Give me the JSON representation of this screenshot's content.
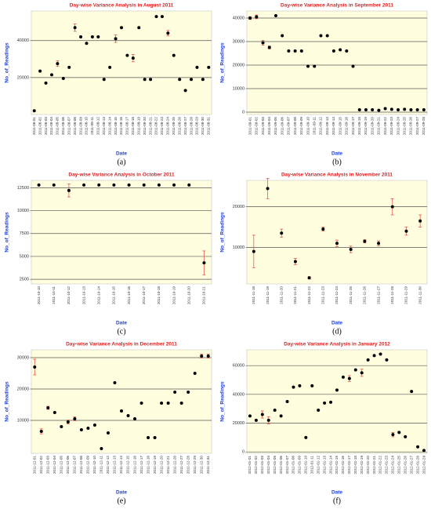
{
  "chart_data": [
    {
      "type": "point",
      "title": "Day-wise Variance Analysis in August 2011",
      "x_label": "Date",
      "y_label": "No_of_Readings",
      "caption": "(a)",
      "categories": [
        "2011-08-01",
        "2011-08-02",
        "2011-08-03",
        "2011-08-04",
        "2011-08-05",
        "2011-08-06",
        "2011-08-07",
        "2011-08-08",
        "2011-08-09",
        "2011-08-10",
        "2011-08-11",
        "2011-08-12",
        "2011-08-13",
        "2011-08-14",
        "2011-08-15",
        "2011-08-16",
        "2011-08-17",
        "2011-08-18",
        "2011-08-19",
        "2011-08-20",
        "2011-08-21",
        "2011-08-22",
        "2011-08-23",
        "2011-08-24",
        "2011-08-25",
        "2011-08-26",
        "2011-08-27",
        "2011-08-28",
        "2011-08-29",
        "2011-08-30",
        "2011-08-31"
      ],
      "values": [
        2000,
        23500,
        17000,
        21500,
        27500,
        19500,
        25500,
        47000,
        42000,
        38500,
        42000,
        42000,
        19000,
        25500,
        41000,
        47000,
        32000,
        30500,
        47000,
        19000,
        19000,
        53000,
        53000,
        44000,
        32000,
        19000,
        13000,
        19000,
        25500,
        19000,
        25500
      ],
      "errors": [
        null,
        null,
        null,
        null,
        1500,
        null,
        null,
        2000,
        null,
        null,
        null,
        null,
        null,
        null,
        2000,
        null,
        null,
        2000,
        null,
        null,
        null,
        null,
        null,
        1500,
        null,
        null,
        null,
        null,
        null,
        null,
        null
      ],
      "color": "#000000",
      "error_color": "#e0443c",
      "ylim": [
        0,
        56000
      ],
      "yticks": [
        20000,
        40000
      ],
      "grid": true
    },
    {
      "type": "point",
      "title": "Day-wise Variance Analysis in September 2011",
      "x_label": "Date",
      "y_label": "No_of_Readings",
      "caption": "(b)",
      "categories": [
        "2011-09-01",
        "2011-09-02",
        "2011-09-03",
        "2011-09-04",
        "2011-09-05",
        "2011-09-06",
        "2011-09-07",
        "2011-09-08",
        "2011-09-09",
        "2011-09-10",
        "2011-09-11",
        "2011-09-12",
        "2011-09-13",
        "2011-09-14",
        "2011-09-15",
        "2011-09-16",
        "2011-09-17",
        "2011-09-18",
        "2011-09-19",
        "2011-09-20",
        "2011-09-21",
        "2011-09-22",
        "2011-09-23",
        "2011-09-24",
        "2011-09-25",
        "2011-09-26",
        "2011-09-27",
        "2011-09-28"
      ],
      "values": [
        40000,
        40500,
        29500,
        27500,
        41000,
        32500,
        26000,
        26000,
        26000,
        19500,
        19500,
        32500,
        32500,
        26000,
        26500,
        26000,
        19500,
        1000,
        1000,
        1000,
        800,
        1500,
        1200,
        1000,
        1200,
        1000,
        1000,
        1000
      ],
      "errors": [
        600,
        800,
        1000,
        600,
        null,
        null,
        null,
        null,
        null,
        null,
        null,
        null,
        null,
        null,
        null,
        null,
        null,
        null,
        null,
        null,
        null,
        null,
        null,
        null,
        null,
        null,
        null,
        null
      ],
      "color": "#000000",
      "error_color": "#e0443c",
      "ylim": [
        -1000,
        43000
      ],
      "yticks": [
        0,
        10000,
        20000,
        30000,
        40000
      ],
      "grid": true
    },
    {
      "type": "point",
      "title": "Day-wise Variance Analysis in October 2011",
      "x_label": "Date",
      "y_label": "No_of_Readings",
      "caption": "(c)",
      "categories": [
        "2011-10-10",
        "2011-10-11",
        "2011-10-12",
        "2011-10-13",
        "2011-10-14",
        "2011-10-15",
        "2011-10-16",
        "2011-10-17",
        "2011-10-18",
        "2011-10-19",
        "2011-10-20",
        "2011-10-21"
      ],
      "values": [
        12800,
        12800,
        12200,
        12800,
        12800,
        12800,
        12800,
        12800,
        12800,
        12800,
        12800,
        4300
      ],
      "errors": [
        null,
        null,
        700,
        null,
        null,
        null,
        null,
        null,
        null,
        null,
        null,
        1300
      ],
      "color": "#000000",
      "error_color": "#e0443c",
      "ylim": [
        2000,
        13300
      ],
      "yticks": [
        2500,
        5000,
        7500,
        10000,
        12500
      ],
      "grid": true
    },
    {
      "type": "point",
      "title": "Day-wise Variance Analysis in November 2011",
      "x_label": "Date",
      "y_label": "No_of_Readings",
      "caption": "(d)",
      "categories": [
        "2011-11-18",
        "2011-11-19",
        "2011-11-20",
        "2011-11-21",
        "2011-11-22",
        "2011-11-23",
        "2011-11-24",
        "2011-11-25",
        "2011-11-26",
        "2011-11-27",
        "2011-11-28",
        "2011-11-29",
        "2011-11-30"
      ],
      "values": [
        9000,
        24500,
        13500,
        6500,
        2500,
        14500,
        11000,
        9500,
        11500,
        11000,
        20000,
        14000,
        16500
      ],
      "errors": [
        4000,
        2500,
        1000,
        800,
        300,
        500,
        800,
        800,
        400,
        600,
        2000,
        1000,
        1500
      ],
      "color": "#000000",
      "error_color": "#e0443c",
      "ylim": [
        1000,
        26500
      ],
      "yticks": [
        10000,
        20000
      ],
      "grid": true
    },
    {
      "type": "point",
      "title": "Day-wise Variance Analysis in December 2011",
      "x_label": "Date",
      "y_label": "No_of_Readings",
      "caption": "(e)",
      "categories": [
        "2011-12-01",
        "2011-12-02",
        "2011-12-03",
        "2011-12-04",
        "2011-12-05",
        "2011-12-06",
        "2011-12-07",
        "2011-12-08",
        "2011-12-09",
        "2011-12-10",
        "2011-12-11",
        "2011-12-12",
        "2011-12-13",
        "2011-12-14",
        "2011-12-15",
        "2011-12-16",
        "2011-12-17",
        "2011-12-18",
        "2011-12-19",
        "2011-12-20",
        "2011-12-21",
        "2011-12-26",
        "2011-12-27",
        "2011-12-28",
        "2011-12-29",
        "2011-12-30",
        "2011-12-31"
      ],
      "values": [
        27000,
        6500,
        14000,
        12500,
        8000,
        9500,
        10500,
        7000,
        7500,
        8500,
        1000,
        6000,
        22000,
        13000,
        11500,
        10500,
        15500,
        4500,
        4500,
        15500,
        15500,
        19000,
        15500,
        19000,
        25000,
        30500,
        30500
      ],
      "errors": [
        2500,
        800,
        500,
        null,
        null,
        600,
        600,
        null,
        null,
        null,
        null,
        null,
        null,
        null,
        null,
        null,
        null,
        null,
        null,
        null,
        null,
        null,
        null,
        null,
        null,
        600,
        600
      ],
      "color": "#000000",
      "error_color": "#e0443c",
      "ylim": [
        -500,
        32500
      ],
      "yticks": [
        10000,
        20000,
        30000
      ],
      "grid": true
    },
    {
      "type": "point",
      "title": "Day-wise Variance Analysis in January 2012",
      "x_label": "Date",
      "y_label": "No_of_Readings",
      "caption": "(f)",
      "categories": [
        "2012-01-01",
        "2012-01-02",
        "2012-01-03",
        "2012-01-04",
        "2012-01-05",
        "2012-01-06",
        "2012-01-07",
        "2012-01-08",
        "2012-01-09",
        "2012-01-10",
        "2012-01-11",
        "2012-01-12",
        "2012-01-13",
        "2012-01-14",
        "2012-01-15",
        "2012-01-16",
        "2012-01-17",
        "2012-01-18",
        "2012-01-19",
        "2012-01-20",
        "2012-01-21",
        "2012-01-22",
        "2012-01-23",
        "2012-01-24",
        "2012-01-25",
        "2012-01-26",
        "2012-01-27",
        "2012-01-28",
        "2012-01-29"
      ],
      "values": [
        25000,
        22000,
        26000,
        22000,
        29000,
        25000,
        35000,
        45000,
        46000,
        10000,
        46000,
        29000,
        34000,
        34500,
        43000,
        52000,
        51000,
        57000,
        55000,
        64000,
        67000,
        68000,
        64000,
        12000,
        13500,
        10500,
        42000,
        3500,
        1000
      ],
      "errors": [
        null,
        null,
        2500,
        2500,
        null,
        null,
        null,
        null,
        null,
        null,
        null,
        null,
        null,
        null,
        null,
        null,
        2000,
        null,
        2500,
        null,
        null,
        null,
        null,
        1500,
        null,
        null,
        null,
        null,
        null
      ],
      "color": "#000000",
      "error_color": "#e0443c",
      "ylim": [
        -1000,
        71000
      ],
      "yticks": [
        0,
        20000,
        40000,
        60000
      ],
      "grid": true
    }
  ]
}
